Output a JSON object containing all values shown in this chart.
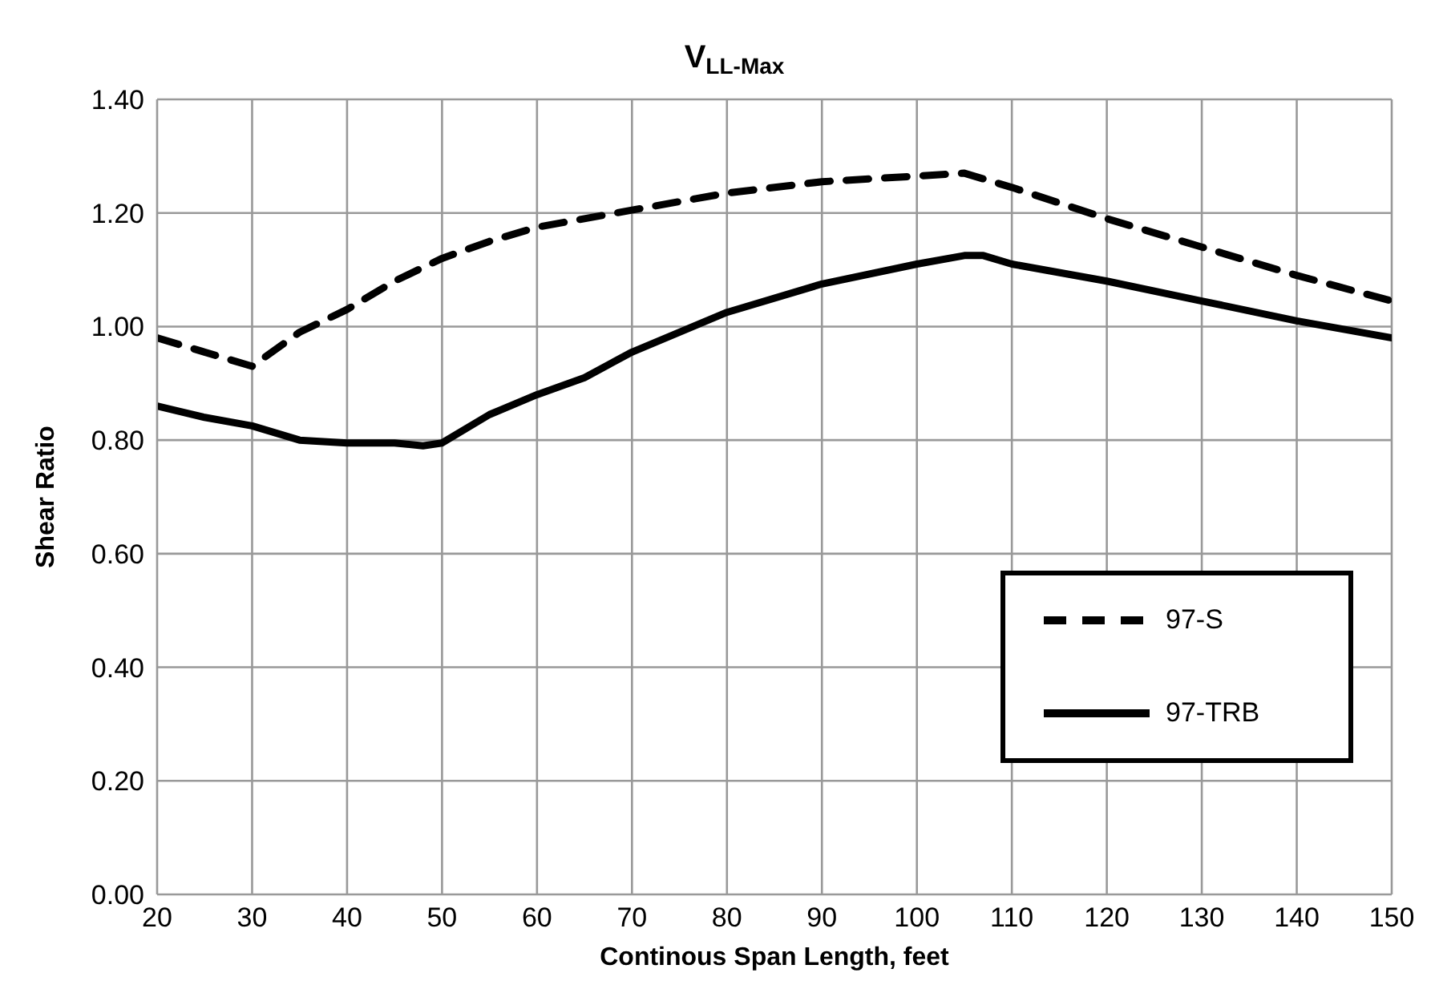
{
  "chart_data": {
    "type": "line",
    "title": "V$_{LL-Max}$",
    "xlabel": "Continous Span Length, feet",
    "ylabel": "Shear Ratio",
    "xlim": [
      20,
      150
    ],
    "xticks": [
      20,
      30,
      40,
      50,
      60,
      70,
      80,
      90,
      100,
      110,
      120,
      130,
      140,
      150
    ],
    "ylim": [
      0,
      1.4
    ],
    "yticks": [
      {
        "value": 0,
        "label": "0.00"
      },
      {
        "value": 0.2,
        "label": "0.20"
      },
      {
        "value": 0.4,
        "label": "0.40"
      },
      {
        "value": 0.6,
        "label": "0.60"
      },
      {
        "value": 0.8,
        "label": "0.80"
      },
      {
        "value": 1,
        "label": "1.00"
      },
      {
        "value": 1.2,
        "label": "1.20"
      },
      {
        "value": 1.4,
        "label": "1.40"
      }
    ],
    "grid": true,
    "legend": "bottom right",
    "marker": "none",
    "series": [
      {
        "name": "97-S",
        "color": "#000000",
        "line_style": "dashed",
        "x": [
          20,
          25,
          30,
          35,
          40,
          45,
          50,
          55,
          60,
          70,
          80,
          90,
          100,
          105,
          110,
          120,
          130,
          140,
          150
        ],
        "values": [
          0.98,
          0.955,
          0.93,
          0.99,
          1.03,
          1.08,
          1.12,
          1.15,
          1.175,
          1.205,
          1.235,
          1.255,
          1.265,
          1.27,
          1.245,
          1.19,
          1.14,
          1.09,
          1.045
        ]
      },
      {
        "name": "97-TRB",
        "color": "#000000",
        "line_style": "solid",
        "x": [
          20,
          25,
          30,
          35,
          40,
          45,
          48,
          50,
          55,
          60,
          65,
          70,
          80,
          90,
          100,
          105,
          107,
          110,
          120,
          130,
          140,
          150
        ],
        "values": [
          0.86,
          0.84,
          0.825,
          0.8,
          0.795,
          0.795,
          0.79,
          0.795,
          0.845,
          0.88,
          0.91,
          0.955,
          1.025,
          1.075,
          1.11,
          1.125,
          1.125,
          1.11,
          1.08,
          1.045,
          1.01,
          0.98
        ]
      }
    ]
  }
}
